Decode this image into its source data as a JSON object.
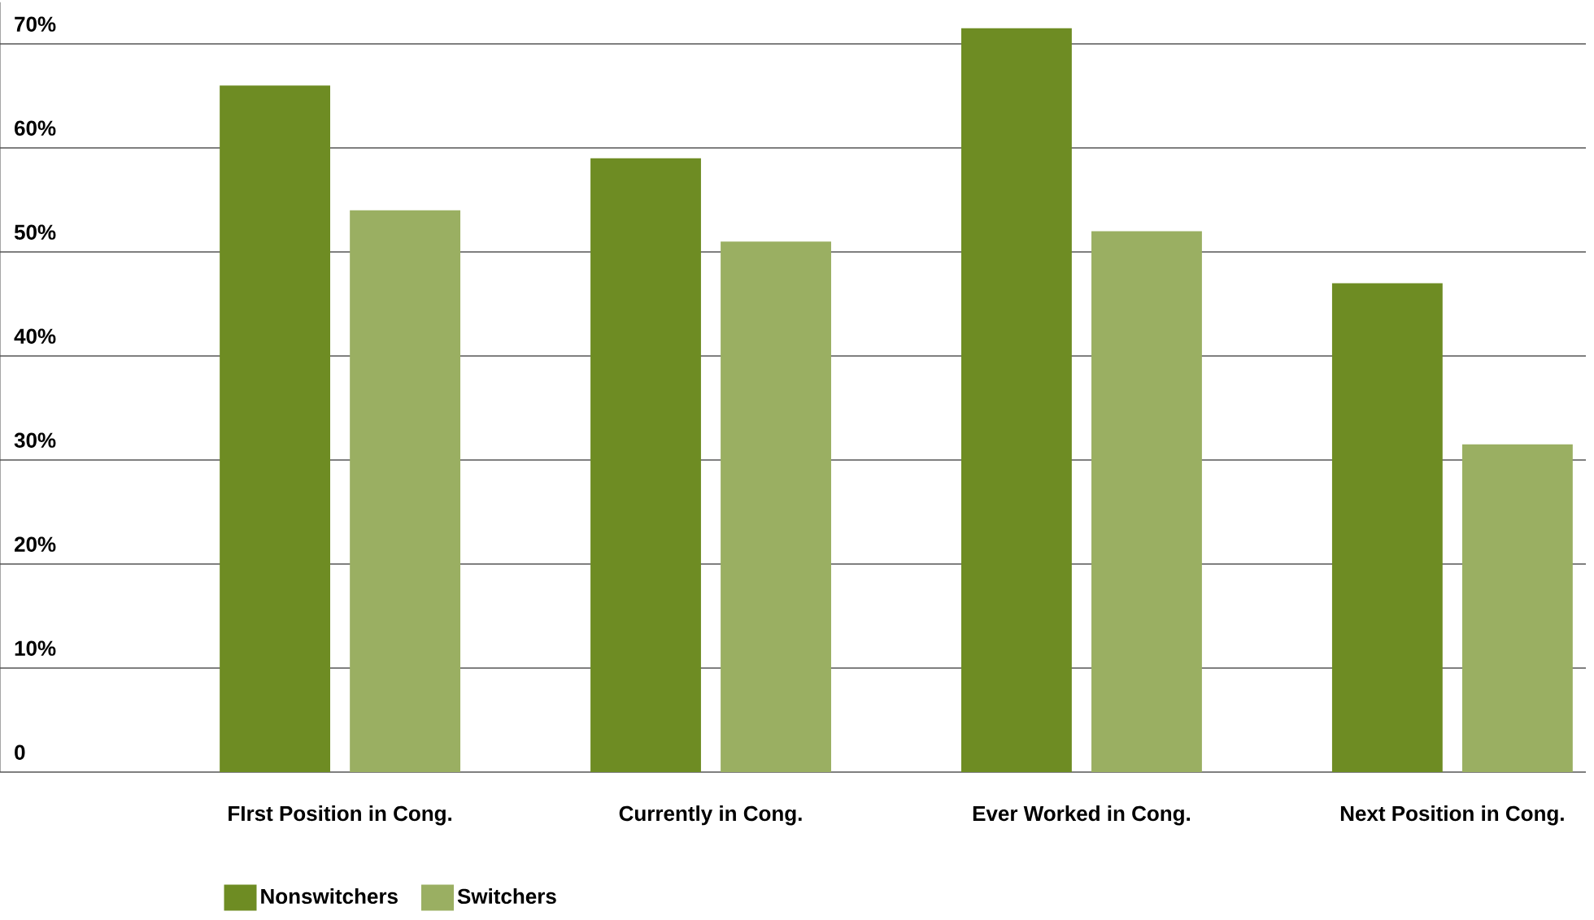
{
  "chart_data": {
    "type": "bar",
    "categories": [
      "FIrst Position in Cong.",
      "Currently in Cong.",
      "Ever Worked in Cong.",
      "Next Position in Cong."
    ],
    "series": [
      {
        "name": "Nonswitchers",
        "color": "#6e8c23",
        "values": [
          66,
          59,
          71.5,
          47
        ]
      },
      {
        "name": "Switchers",
        "color": "#9aaf62",
        "values": [
          54,
          51,
          52,
          31.5
        ]
      }
    ],
    "ylim": [
      0,
      74
    ],
    "yticks": [
      {
        "value": 0,
        "label": "0"
      },
      {
        "value": 10,
        "label": "10%"
      },
      {
        "value": 20,
        "label": "20%"
      },
      {
        "value": 30,
        "label": "30%"
      },
      {
        "value": 40,
        "label": "40%"
      },
      {
        "value": 50,
        "label": "50%"
      },
      {
        "value": 60,
        "label": "60%"
      },
      {
        "value": 70,
        "label": "70%"
      }
    ],
    "grid": "y",
    "legend": "bottom left"
  }
}
